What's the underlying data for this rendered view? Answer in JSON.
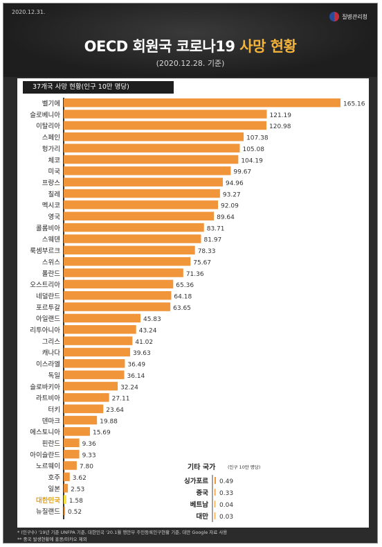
{
  "header": {
    "date": "2020.12.31.",
    "agency": "질병관리청",
    "title_white": "OECD 회원국 코로나19",
    "title_highlight": "사망 현황",
    "subtitle": "(2020.12.28. 기준)"
  },
  "chart_data": {
    "type": "bar",
    "orientation": "horizontal",
    "title": "37개국 사망 현황(인구 10만 명당)",
    "categories": [
      "벨기에",
      "슬로베니아",
      "이탈리아",
      "스페인",
      "헝가리",
      "체코",
      "미국",
      "프랑스",
      "칠레",
      "멕시코",
      "영국",
      "콜롬비아",
      "스웨덴",
      "룩셈부르크",
      "스위스",
      "폴란드",
      "오스트리아",
      "네덜란드",
      "포르투갈",
      "아일랜드",
      "리투아니아",
      "그리스",
      "캐나다",
      "이스라엘",
      "독일",
      "슬로바키아",
      "라트비아",
      "터키",
      "덴마크",
      "에스토니아",
      "핀란드",
      "아이슬란드",
      "노르웨이",
      "호주",
      "일본",
      "대한민국",
      "뉴질랜드"
    ],
    "values": [
      165.16,
      121.19,
      120.98,
      107.38,
      105.08,
      104.19,
      99.67,
      94.96,
      93.27,
      92.09,
      89.64,
      83.71,
      81.97,
      78.33,
      75.67,
      71.36,
      65.36,
      64.18,
      63.65,
      45.83,
      43.24,
      41.02,
      39.63,
      36.49,
      36.14,
      32.24,
      27.11,
      23.64,
      19.88,
      15.69,
      9.36,
      9.33,
      7.8,
      3.62,
      2.53,
      1.58,
      0.52
    ],
    "value_labels": [
      "165.16",
      "121.19",
      "120.98",
      "107.38",
      "105.08",
      "104.19",
      "99.67",
      "94.96",
      "93.27",
      "92.09",
      "89.64",
      "83.71",
      "81.97",
      "78.33",
      "75.67",
      "71.36",
      "65.36",
      "64.18",
      "63.65",
      "45.83",
      "43.24",
      "41.02",
      "39.63",
      "36.49",
      "36.14",
      "32.24",
      "27.11",
      "23.64",
      "19.88",
      "15.69",
      "9.36",
      "9.33",
      "7.80",
      "3.62",
      "2.53",
      "1.58",
      "0.52"
    ],
    "highlight_category": "대한민국",
    "colors": {
      "bar": "#f0953a",
      "highlight": "#f7e03a",
      "highlight_label": "#e2a21b",
      "text": "#222222"
    },
    "xlim": [
      0,
      180
    ],
    "other": {
      "title": "기타 국가",
      "title_note": "(인구 10만 명당)",
      "categories": [
        "싱가포르",
        "중국",
        "베트남",
        "대만"
      ],
      "values": [
        0.49,
        0.33,
        0.04,
        0.03
      ],
      "value_labels": [
        "0.49",
        "0.33",
        "0.04",
        "0.03"
      ]
    }
  },
  "footnotes": [
    "* (인구수) '19년 기준 UNFPA 기준, 대한민국 '20.1월 행안부 주민등록인구현황 기준, 대만 Google 자료 사용",
    "** 중국 발생현황에 홍콩/마카오 제외"
  ]
}
